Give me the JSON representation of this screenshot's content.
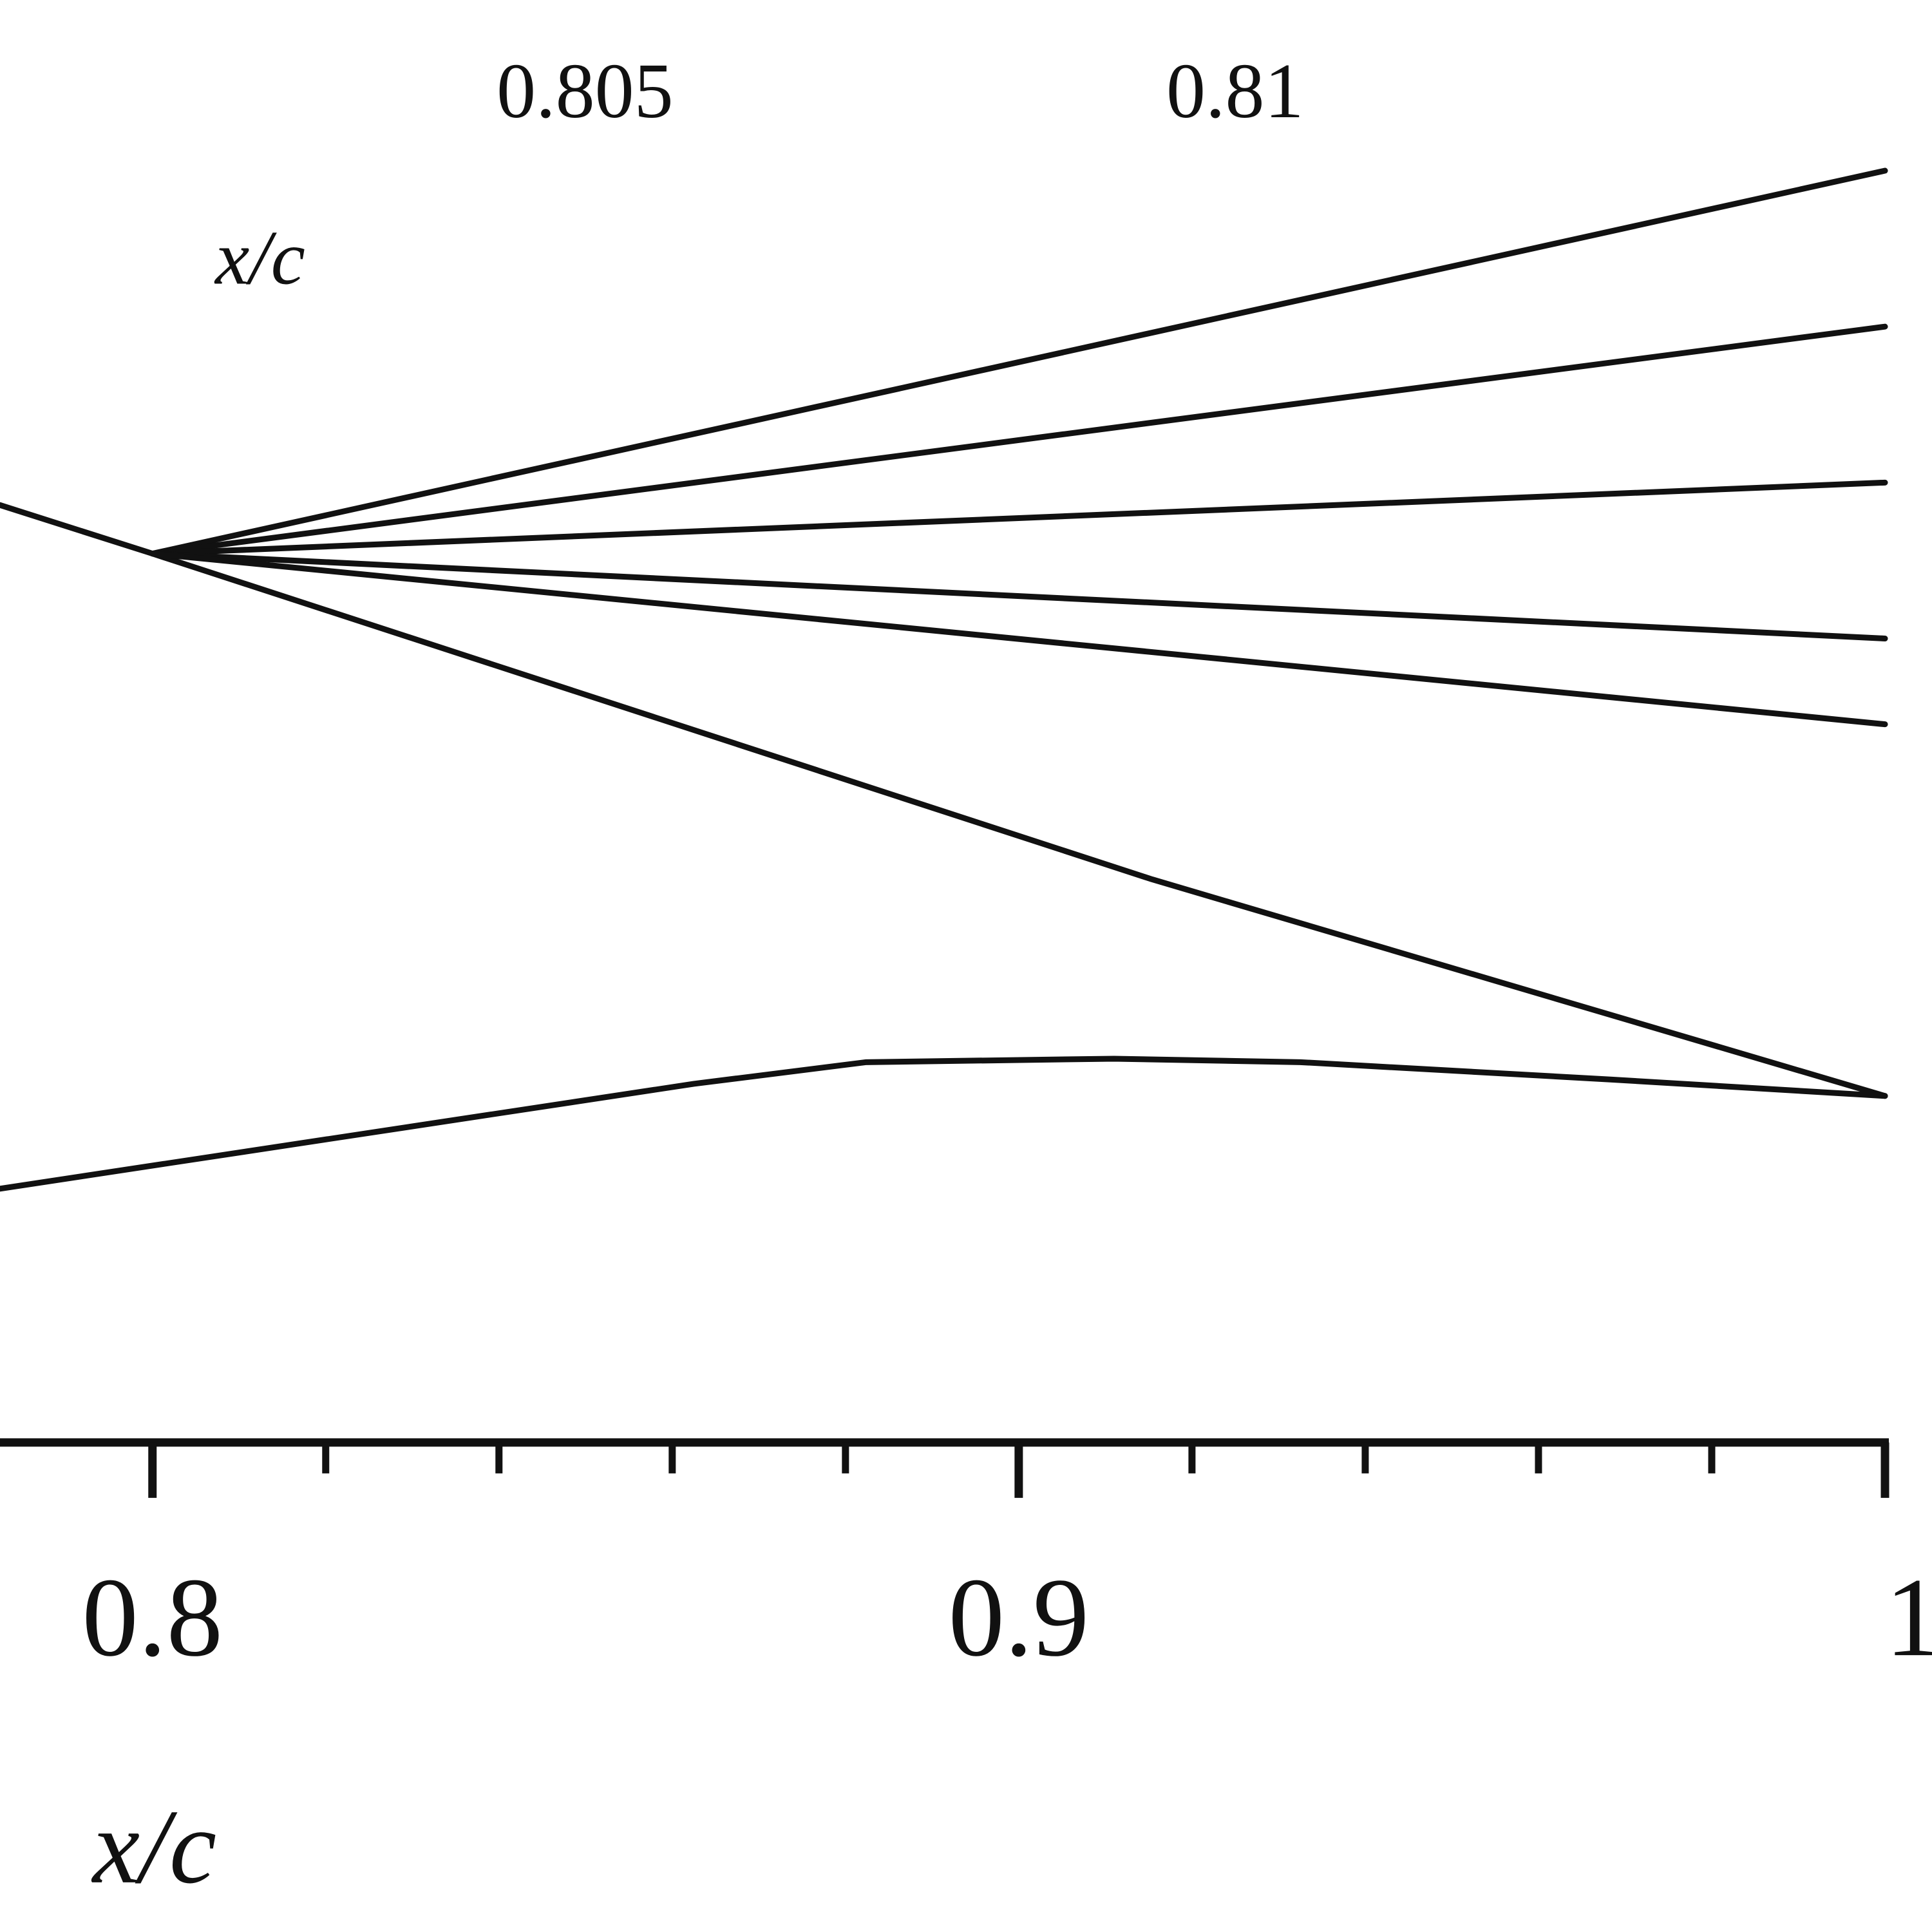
{
  "chart_data": {
    "type": "line",
    "xlabel": "x/c",
    "x2label": "x/c",
    "xlim": [
      0.7824,
      1.0
    ],
    "xticks": [
      0.8,
      0.9,
      1
    ],
    "xminorticks": [
      0.82,
      0.84,
      0.86,
      0.88,
      0.92,
      0.94,
      0.96,
      0.98
    ],
    "x2lim": [
      0.8005,
      0.815
    ],
    "x2ticks": [
      0.805,
      0.81
    ],
    "ylim": [
      -0.0965,
      0.1265
    ],
    "axis_y": -0.04,
    "series": [
      {
        "color": "#111111",
        "x": [
          0.7824,
          0.8,
          0.9154,
          1.0
        ],
        "y": [
          0.0682,
          0.0626,
          0.025,
          0.0
        ]
      },
      {
        "color": "#111111",
        "x": [
          0.8,
          1.0
        ],
        "y": [
          0.0626,
          0.1068
        ]
      },
      {
        "color": "#111111",
        "x": [
          0.8,
          1.0
        ],
        "y": [
          0.0626,
          0.0888
        ]
      },
      {
        "color": "#111111",
        "x": [
          0.8,
          1.0
        ],
        "y": [
          0.0626,
          0.0708
        ]
      },
      {
        "color": "#111111",
        "x": [
          0.8,
          1.0
        ],
        "y": [
          0.0626,
          0.0528
        ]
      },
      {
        "color": "#111111",
        "x": [
          0.8,
          1.0
        ],
        "y": [
          0.0626,
          0.0429
        ]
      },
      {
        "color": "#111111",
        "x": [
          0.7824,
          0.8625,
          0.8824,
          0.911,
          0.9325,
          0.9683,
          1.0
        ],
        "y": [
          -0.0107,
          0.0014,
          0.0039,
          0.0043,
          0.0039,
          0.0019,
          0.0
        ]
      }
    ]
  }
}
